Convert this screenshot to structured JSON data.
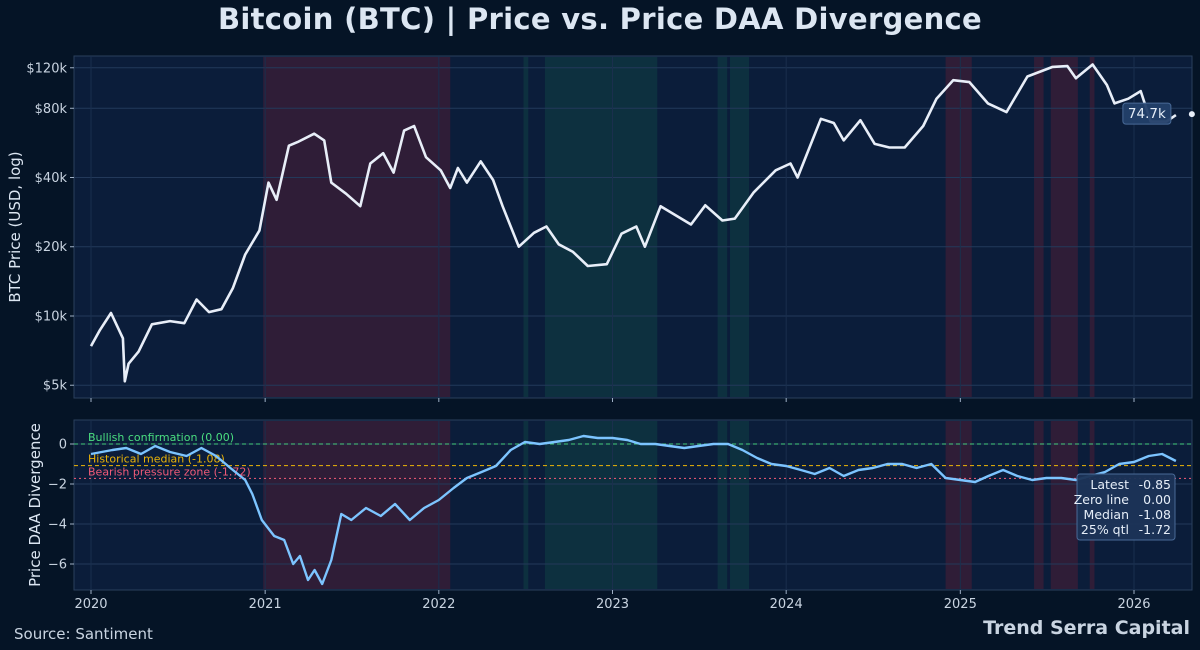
{
  "title": "Bitcoin (BTC)  |  Price vs. Price DAA Divergence",
  "source": "Source: Santiment",
  "brand": "Trend Serra Capital",
  "colors": {
    "background": "#051426",
    "panel": "#0b1d3a",
    "price_line": "#e8eef8",
    "daa_line": "#7cc4ff",
    "bullish": "#4ade80",
    "median": "#eab308",
    "bearish": "#f05a78",
    "red_shade": "#5a1f35",
    "green_shade": "#0f4a46"
  },
  "chart_data": [
    {
      "type": "line",
      "ylabel": "BTC Price (USD, log)",
      "yscale": "log",
      "ylim": [
        4400,
        135000
      ],
      "yticks": [
        {
          "v": 5000,
          "label": "$5k"
        },
        {
          "v": 10000,
          "label": "$10k"
        },
        {
          "v": 20000,
          "label": "$20k"
        },
        {
          "v": 40000,
          "label": "$40k"
        },
        {
          "v": 80000,
          "label": "$80k"
        },
        {
          "v": 120000,
          "label": "$120k"
        }
      ],
      "last_label": "74.7k",
      "series": [
        {
          "points": [
            [
              "2020-01-01",
              7400
            ],
            [
              "2020-01-20",
              8700
            ],
            [
              "2020-02-12",
              10300
            ],
            [
              "2020-03-08",
              8000
            ],
            [
              "2020-03-12",
              5200
            ],
            [
              "2020-03-20",
              6200
            ],
            [
              "2020-04-10",
              7000
            ],
            [
              "2020-05-08",
              9200
            ],
            [
              "2020-06-15",
              9500
            ],
            [
              "2020-07-15",
              9300
            ],
            [
              "2020-08-10",
              11800
            ],
            [
              "2020-09-05",
              10400
            ],
            [
              "2020-10-01",
              10700
            ],
            [
              "2020-10-25",
              13200
            ],
            [
              "2020-11-20",
              18500
            ],
            [
              "2020-12-20",
              23500
            ],
            [
              "2021-01-08",
              38000
            ],
            [
              "2021-01-25",
              32000
            ],
            [
              "2021-02-20",
              55000
            ],
            [
              "2021-03-10",
              57000
            ],
            [
              "2021-04-14",
              62000
            ],
            [
              "2021-05-05",
              58000
            ],
            [
              "2021-05-20",
              38000
            ],
            [
              "2021-06-20",
              34000
            ],
            [
              "2021-07-20",
              30000
            ],
            [
              "2021-08-10",
              46000
            ],
            [
              "2021-09-06",
              51000
            ],
            [
              "2021-09-28",
              42000
            ],
            [
              "2021-10-20",
              64000
            ],
            [
              "2021-11-10",
              67000
            ],
            [
              "2021-12-05",
              49000
            ],
            [
              "2022-01-05",
              43000
            ],
            [
              "2022-01-25",
              36000
            ],
            [
              "2022-02-10",
              44000
            ],
            [
              "2022-03-01",
              38000
            ],
            [
              "2022-03-30",
              47000
            ],
            [
              "2022-04-25",
              39000
            ],
            [
              "2022-05-15",
              30000
            ],
            [
              "2022-06-18",
              20000
            ],
            [
              "2022-07-20",
              23000
            ],
            [
              "2022-08-15",
              24500
            ],
            [
              "2022-09-10",
              20500
            ],
            [
              "2022-10-10",
              19000
            ],
            [
              "2022-11-10",
              16500
            ],
            [
              "2022-12-20",
              16800
            ],
            [
              "2023-01-20",
              22800
            ],
            [
              "2023-02-20",
              24500
            ],
            [
              "2023-03-10",
              20000
            ],
            [
              "2023-04-12",
              30000
            ],
            [
              "2023-06-15",
              25000
            ],
            [
              "2023-07-15",
              30300
            ],
            [
              "2023-08-20",
              26000
            ],
            [
              "2023-09-15",
              26500
            ],
            [
              "2023-10-25",
              34500
            ],
            [
              "2023-12-10",
              43000
            ],
            [
              "2024-01-10",
              46000
            ],
            [
              "2024-01-25",
              40000
            ],
            [
              "2024-03-14",
              72000
            ],
            [
              "2024-04-10",
              69000
            ],
            [
              "2024-05-01",
              58000
            ],
            [
              "2024-06-05",
              71000
            ],
            [
              "2024-07-05",
              56000
            ],
            [
              "2024-08-05",
              54000
            ],
            [
              "2024-09-06",
              54000
            ],
            [
              "2024-10-15",
              67000
            ],
            [
              "2024-11-12",
              88000
            ],
            [
              "2024-12-17",
              106000
            ],
            [
              "2025-01-20",
              104000
            ],
            [
              "2025-02-28",
              84000
            ],
            [
              "2025-04-08",
              77000
            ],
            [
              "2025-05-22",
              110000
            ],
            [
              "2025-07-14",
              121000
            ],
            [
              "2025-08-14",
              122000
            ],
            [
              "2025-09-01",
              108000
            ],
            [
              "2025-10-06",
              124000
            ],
            [
              "2025-11-05",
              101000
            ],
            [
              "2025-11-21",
              84000
            ],
            [
              "2025-12-20",
              88000
            ],
            [
              "2026-01-15",
              95000
            ],
            [
              "2026-02-05",
              70000
            ],
            [
              "2026-03-10",
              70000
            ],
            [
              "2026-03-30",
              74700
            ]
          ]
        }
      ]
    },
    {
      "type": "line",
      "ylabel": "Price DAA Divergence",
      "ylim": [
        -7.3,
        1.2
      ],
      "yticks": [
        {
          "v": 0,
          "label": "0"
        },
        {
          "v": -2,
          "label": "−2"
        },
        {
          "v": -4,
          "label": "−4"
        },
        {
          "v": -6,
          "label": "−6"
        }
      ],
      "x_ticks": [
        "2020",
        "2021",
        "2022",
        "2023",
        "2024",
        "2025",
        "2026"
      ],
      "reference_lines": [
        {
          "value": 0.0,
          "label": "Bullish confirmation  (0.00)",
          "color_key": "bullish"
        },
        {
          "value": -1.08,
          "label": "Historical median  (-1.08)",
          "color_key": "median"
        },
        {
          "value": -1.72,
          "label": "Bearish pressure zone  (-1.72)",
          "color_key": "bearish"
        }
      ],
      "stats": [
        {
          "label": "Latest",
          "value": "-0.85"
        },
        {
          "label": "Zero line",
          "value": "0.00"
        },
        {
          "label": "Median",
          "value": "-1.08"
        },
        {
          "label": "25% qtl",
          "value": "-1.72"
        }
      ],
      "series": [
        {
          "points": [
            [
              "2020-01-01",
              -0.5
            ],
            [
              "2020-02-15",
              -0.3
            ],
            [
              "2020-03-15",
              -0.2
            ],
            [
              "2020-04-15",
              -0.5
            ],
            [
              "2020-05-15",
              -0.1
            ],
            [
              "2020-06-15",
              -0.4
            ],
            [
              "2020-07-20",
              -0.6
            ],
            [
              "2020-08-20",
              -0.2
            ],
            [
              "2020-09-20",
              -0.6
            ],
            [
              "2020-10-20",
              -1.2
            ],
            [
              "2020-11-20",
              -1.8
            ],
            [
              "2020-12-05",
              -2.5
            ],
            [
              "2020-12-25",
              -3.8
            ],
            [
              "2021-01-20",
              -4.6
            ],
            [
              "2021-02-10",
              -4.8
            ],
            [
              "2021-03-01",
              -6.0
            ],
            [
              "2021-03-15",
              -5.6
            ],
            [
              "2021-04-01",
              -6.8
            ],
            [
              "2021-04-15",
              -6.3
            ],
            [
              "2021-05-01",
              -7.0
            ],
            [
              "2021-05-20",
              -5.8
            ],
            [
              "2021-06-10",
              -3.5
            ],
            [
              "2021-07-01",
              -3.8
            ],
            [
              "2021-08-01",
              -3.2
            ],
            [
              "2021-09-01",
              -3.6
            ],
            [
              "2021-10-01",
              -3.0
            ],
            [
              "2021-11-01",
              -3.8
            ],
            [
              "2021-12-01",
              -3.2
            ],
            [
              "2022-01-01",
              -2.8
            ],
            [
              "2022-02-01",
              -2.2
            ],
            [
              "2022-03-01",
              -1.7
            ],
            [
              "2022-04-01",
              -1.4
            ],
            [
              "2022-05-01",
              -1.1
            ],
            [
              "2022-06-01",
              -0.3
            ],
            [
              "2022-07-01",
              0.1
            ],
            [
              "2022-08-01",
              0.0
            ],
            [
              "2022-09-01",
              0.1
            ],
            [
              "2022-10-01",
              0.2
            ],
            [
              "2022-11-01",
              0.4
            ],
            [
              "2022-12-01",
              0.3
            ],
            [
              "2023-01-01",
              0.3
            ],
            [
              "2023-02-01",
              0.2
            ],
            [
              "2023-03-01",
              0.0
            ],
            [
              "2023-04-01",
              0.0
            ],
            [
              "2023-05-01",
              -0.1
            ],
            [
              "2023-06-01",
              -0.2
            ],
            [
              "2023-07-01",
              -0.1
            ],
            [
              "2023-08-01",
              0.0
            ],
            [
              "2023-09-01",
              0.0
            ],
            [
              "2023-10-01",
              -0.3
            ],
            [
              "2023-11-01",
              -0.7
            ],
            [
              "2023-12-01",
              -1.0
            ],
            [
              "2024-01-01",
              -1.1
            ],
            [
              "2024-02-01",
              -1.3
            ],
            [
              "2024-03-01",
              -1.5
            ],
            [
              "2024-04-01",
              -1.2
            ],
            [
              "2024-05-01",
              -1.6
            ],
            [
              "2024-06-01",
              -1.3
            ],
            [
              "2024-07-01",
              -1.2
            ],
            [
              "2024-08-01",
              -1.0
            ],
            [
              "2024-09-01",
              -1.0
            ],
            [
              "2024-10-01",
              -1.2
            ],
            [
              "2024-11-01",
              -1.0
            ],
            [
              "2024-12-01",
              -1.7
            ],
            [
              "2025-01-01",
              -1.8
            ],
            [
              "2025-02-01",
              -1.9
            ],
            [
              "2025-03-01",
              -1.6
            ],
            [
              "2025-04-01",
              -1.3
            ],
            [
              "2025-05-01",
              -1.6
            ],
            [
              "2025-06-01",
              -1.8
            ],
            [
              "2025-07-01",
              -1.7
            ],
            [
              "2025-08-01",
              -1.7
            ],
            [
              "2025-09-01",
              -1.8
            ],
            [
              "2025-10-01",
              -1.6
            ],
            [
              "2025-11-01",
              -1.4
            ],
            [
              "2025-12-01",
              -1.0
            ],
            [
              "2026-01-01",
              -0.9
            ],
            [
              "2026-02-01",
              -0.6
            ],
            [
              "2026-03-01",
              -0.5
            ],
            [
              "2026-03-30",
              -0.85
            ]
          ]
        }
      ]
    }
  ],
  "regimes": [
    {
      "from": "2020-12-28",
      "to": "2022-01-25",
      "color_key": "red_shade"
    },
    {
      "from": "2022-06-28",
      "to": "2022-07-08",
      "color_key": "green_shade"
    },
    {
      "from": "2022-08-12",
      "to": "2023-04-05",
      "color_key": "green_shade"
    },
    {
      "from": "2023-08-10",
      "to": "2023-08-30",
      "color_key": "green_shade"
    },
    {
      "from": "2023-09-05",
      "to": "2023-10-15",
      "color_key": "green_shade"
    },
    {
      "from": "2024-12-01",
      "to": "2025-01-25",
      "color_key": "red_shade"
    },
    {
      "from": "2025-06-05",
      "to": "2025-06-25",
      "color_key": "red_shade"
    },
    {
      "from": "2025-07-10",
      "to": "2025-09-05",
      "color_key": "red_shade"
    },
    {
      "from": "2025-09-30",
      "to": "2025-10-10",
      "color_key": "red_shade"
    }
  ]
}
